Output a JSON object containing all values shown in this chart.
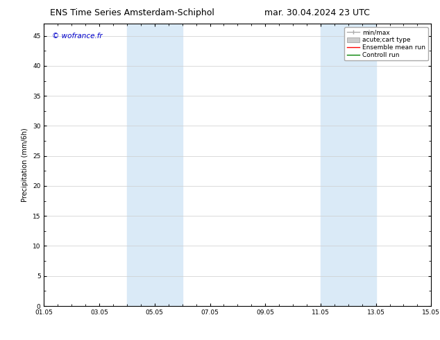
{
  "title_left": "ENS Time Series Amsterdam-Schiphol",
  "title_right": "mar. 30.04.2024 23 UTC",
  "ylabel": "Precipitation (mm/6h)",
  "watermark": "© wofrance.fr",
  "watermark_color": "#0000cc",
  "xmin": 0,
  "xmax": 336,
  "ymin": 0,
  "ymax": 47,
  "yticks": [
    0,
    5,
    10,
    15,
    20,
    25,
    30,
    35,
    40,
    45
  ],
  "xtick_labels": [
    "01.05",
    "03.05",
    "05.05",
    "07.05",
    "09.05",
    "11.05",
    "13.05",
    "15.05"
  ],
  "xtick_positions": [
    0,
    48,
    96,
    144,
    192,
    240,
    288,
    336
  ],
  "shaded_regions": [
    {
      "xstart": 72,
      "xend": 120
    },
    {
      "xstart": 240,
      "xend": 288
    }
  ],
  "shaded_color": "#daeaf7",
  "legend_entries": [
    {
      "label": "min/max",
      "color": "#aaaaaa",
      "lw": 1.0,
      "style": "minmax"
    },
    {
      "label": "acute;cart type",
      "color": "#cccccc",
      "lw": 4,
      "style": "bar"
    },
    {
      "label": "Ensemble mean run",
      "color": "#ff0000",
      "lw": 1.0,
      "style": "line"
    },
    {
      "label": "Controll run",
      "color": "#008000",
      "lw": 1.0,
      "style": "line"
    }
  ],
  "background_color": "#ffffff",
  "grid_color": "#cccccc",
  "font_size_title": 9,
  "font_size_axis": 7,
  "font_size_tick": 6.5,
  "font_size_watermark": 7.5,
  "font_size_legend": 6.5
}
